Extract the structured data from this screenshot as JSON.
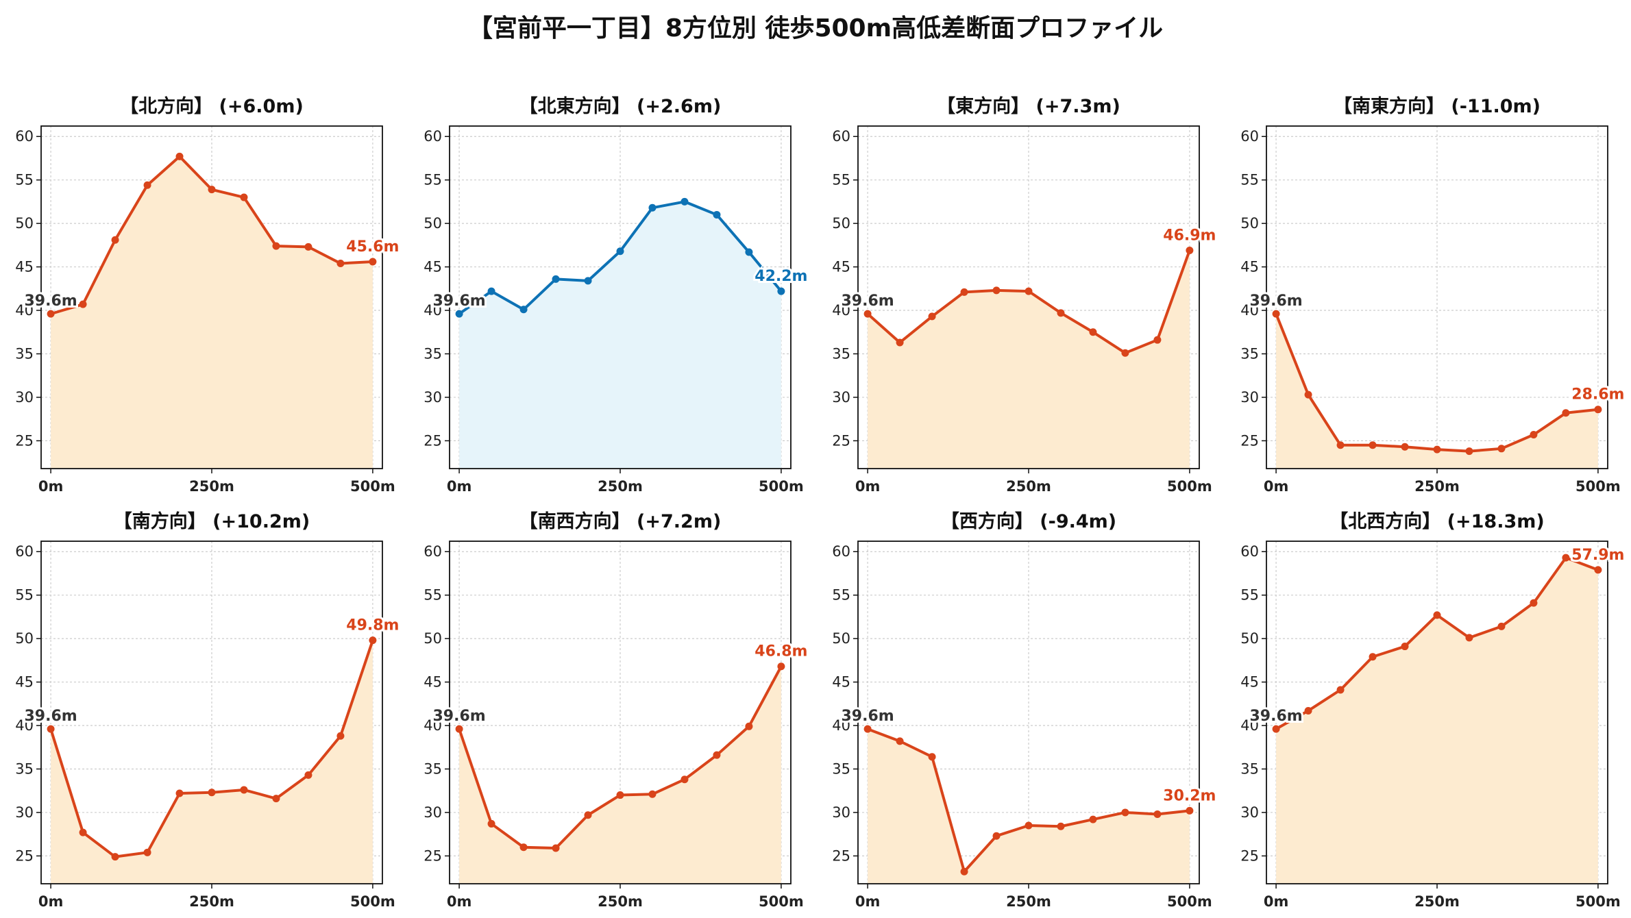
{
  "figure": {
    "title": "【宮前平一丁目】8方位別 徒歩500m高低差断面プロファイル"
  },
  "colors": {
    "up_line": "#d9441a",
    "up_fill": "#fdebd0",
    "flat_line": "#0d72b5",
    "flat_fill": "#e6f4fa",
    "start_label": "#333333",
    "grid": "#cccccc"
  },
  "chart_data": [
    {
      "type": "area",
      "title": "【北方向】 (+6.0m)",
      "color_scheme": "up",
      "x": [
        0,
        50,
        100,
        150,
        200,
        250,
        300,
        350,
        400,
        450,
        500
      ],
      "x_tick_labels": [
        "0m",
        "250m",
        "500m"
      ],
      "y_ticks": [
        25,
        30,
        35,
        40,
        45,
        50,
        55,
        60
      ],
      "values": [
        39.6,
        40.7,
        48.1,
        54.4,
        57.7,
        53.9,
        53.0,
        47.4,
        47.3,
        45.4,
        45.6
      ],
      "start_label": "39.6m",
      "end_label": "45.6m",
      "ylim": [
        21.8,
        61.2
      ],
      "grid": true
    },
    {
      "type": "area",
      "title": "【北東方向】 (+2.6m)",
      "color_scheme": "flat",
      "x": [
        0,
        50,
        100,
        150,
        200,
        250,
        300,
        350,
        400,
        450,
        500
      ],
      "x_tick_labels": [
        "0m",
        "250m",
        "500m"
      ],
      "y_ticks": [
        25,
        30,
        35,
        40,
        45,
        50,
        55,
        60
      ],
      "values": [
        39.6,
        42.2,
        40.1,
        43.6,
        43.4,
        46.8,
        51.8,
        52.5,
        51.0,
        46.7,
        42.2
      ],
      "start_label": "39.6m",
      "end_label": "42.2m",
      "ylim": [
        21.8,
        61.2
      ],
      "grid": true
    },
    {
      "type": "area",
      "title": "【東方向】 (+7.3m)",
      "color_scheme": "up",
      "x": [
        0,
        50,
        100,
        150,
        200,
        250,
        300,
        350,
        400,
        450,
        500
      ],
      "x_tick_labels": [
        "0m",
        "250m",
        "500m"
      ],
      "y_ticks": [
        25,
        30,
        35,
        40,
        45,
        50,
        55,
        60
      ],
      "values": [
        39.6,
        36.3,
        39.3,
        42.1,
        42.3,
        42.2,
        39.7,
        37.5,
        35.1,
        36.6,
        46.9
      ],
      "start_label": "39.6m",
      "end_label": "46.9m",
      "ylim": [
        21.8,
        61.2
      ],
      "grid": true
    },
    {
      "type": "area",
      "title": "【南東方向】 (-11.0m)",
      "color_scheme": "up",
      "x": [
        0,
        50,
        100,
        150,
        200,
        250,
        300,
        350,
        400,
        450,
        500
      ],
      "x_tick_labels": [
        "0m",
        "250m",
        "500m"
      ],
      "y_ticks": [
        25,
        30,
        35,
        40,
        45,
        50,
        55,
        60
      ],
      "values": [
        39.6,
        30.3,
        24.5,
        24.5,
        24.3,
        24.0,
        23.8,
        24.1,
        25.7,
        28.2,
        28.6
      ],
      "start_label": "39.6m",
      "end_label": "28.6m",
      "ylim": [
        21.8,
        61.2
      ],
      "grid": true
    },
    {
      "type": "area",
      "title": "【南方向】 (+10.2m)",
      "color_scheme": "up",
      "x": [
        0,
        50,
        100,
        150,
        200,
        250,
        300,
        350,
        400,
        450,
        500
      ],
      "x_tick_labels": [
        "0m",
        "250m",
        "500m"
      ],
      "y_ticks": [
        25,
        30,
        35,
        40,
        45,
        50,
        55,
        60
      ],
      "values": [
        39.6,
        27.7,
        24.9,
        25.4,
        32.2,
        32.3,
        32.6,
        31.6,
        34.3,
        38.8,
        49.8
      ],
      "start_label": "39.6m",
      "end_label": "49.8m",
      "ylim": [
        21.8,
        61.2
      ],
      "grid": true
    },
    {
      "type": "area",
      "title": "【南西方向】 (+7.2m)",
      "color_scheme": "up",
      "x": [
        0,
        50,
        100,
        150,
        200,
        250,
        300,
        350,
        400,
        450,
        500
      ],
      "x_tick_labels": [
        "0m",
        "250m",
        "500m"
      ],
      "y_ticks": [
        25,
        30,
        35,
        40,
        45,
        50,
        55,
        60
      ],
      "values": [
        39.6,
        28.7,
        26.0,
        25.9,
        29.7,
        32.0,
        32.1,
        33.8,
        36.6,
        39.9,
        46.8
      ],
      "start_label": "39.6m",
      "end_label": "46.8m",
      "ylim": [
        21.8,
        61.2
      ],
      "grid": true
    },
    {
      "type": "area",
      "title": "【西方向】 (-9.4m)",
      "color_scheme": "up",
      "x": [
        0,
        50,
        100,
        150,
        200,
        250,
        300,
        350,
        400,
        450,
        500
      ],
      "x_tick_labels": [
        "0m",
        "250m",
        "500m"
      ],
      "y_ticks": [
        25,
        30,
        35,
        40,
        45,
        50,
        55,
        60
      ],
      "values": [
        39.6,
        38.2,
        36.4,
        23.2,
        27.3,
        28.5,
        28.4,
        29.2,
        30.0,
        29.8,
        30.2
      ],
      "start_label": "39.6m",
      "end_label": "30.2m",
      "ylim": [
        21.8,
        61.2
      ],
      "grid": true
    },
    {
      "type": "area",
      "title": "【北西方向】 (+18.3m)",
      "color_scheme": "up",
      "x": [
        0,
        50,
        100,
        150,
        200,
        250,
        300,
        350,
        400,
        450,
        500
      ],
      "x_tick_labels": [
        "0m",
        "250m",
        "500m"
      ],
      "y_ticks": [
        25,
        30,
        35,
        40,
        45,
        50,
        55,
        60
      ],
      "values": [
        39.6,
        41.7,
        44.1,
        47.9,
        49.1,
        52.7,
        50.1,
        51.4,
        54.1,
        59.3,
        57.9
      ],
      "start_label": "39.6m",
      "end_label": "57.9m",
      "ylim": [
        21.8,
        61.2
      ],
      "grid": true
    }
  ]
}
